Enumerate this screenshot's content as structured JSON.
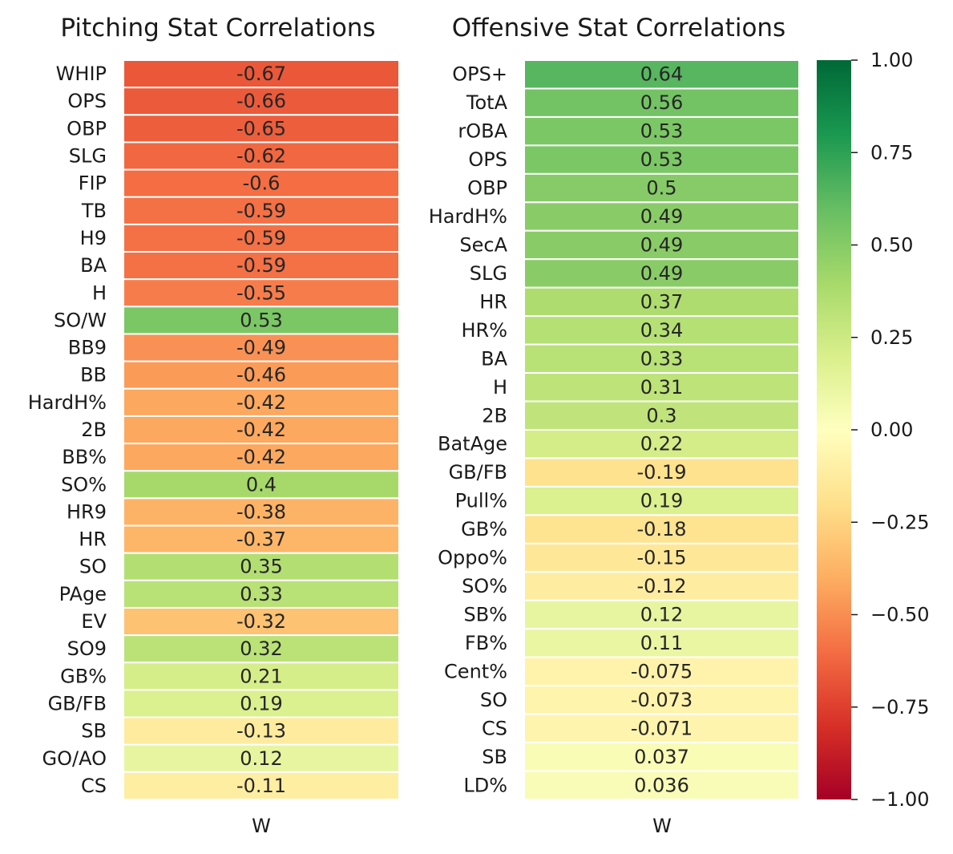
{
  "colormap": "RdYlGn",
  "colormap_stops": [
    "#a50026",
    "#d73027",
    "#f46d43",
    "#fdae61",
    "#fee08b",
    "#ffffbf",
    "#d9ef8b",
    "#a6d96a",
    "#66bd63",
    "#1a9850",
    "#006837"
  ],
  "chart_data": [
    {
      "type": "heatmap",
      "title": "Pitching Stat Correlations",
      "xlabel": "W",
      "rows": [
        "WHIP",
        "OPS",
        "OBP",
        "SLG",
        "FIP",
        "TB",
        "H9",
        "BA",
        "H",
        "SO/W",
        "BB9",
        "BB",
        "HardH%",
        "2B",
        "BB%",
        "SO%",
        "HR9",
        "HR",
        "SO",
        "PAge",
        "EV",
        "SO9",
        "GB%",
        "GB/FB",
        "SB",
        "GO/AO",
        "CS"
      ],
      "values": [
        -0.67,
        -0.66,
        -0.65,
        -0.62,
        -0.6,
        -0.59,
        -0.59,
        -0.59,
        -0.55,
        0.53,
        -0.49,
        -0.46,
        -0.42,
        -0.42,
        -0.42,
        0.4,
        -0.38,
        -0.37,
        0.35,
        0.33,
        -0.32,
        0.32,
        0.21,
        0.19,
        -0.13,
        0.12,
        -0.11
      ],
      "labels": [
        "-0.67",
        "-0.66",
        "-0.65",
        "-0.62",
        "-0.6",
        "-0.59",
        "-0.59",
        "-0.59",
        "-0.55",
        "0.53",
        "-0.49",
        "-0.46",
        "-0.42",
        "-0.42",
        "-0.42",
        "0.4",
        "-0.38",
        "-0.37",
        "0.35",
        "0.33",
        "-0.32",
        "0.32",
        "0.21",
        "0.19",
        "-0.13",
        "0.12",
        "-0.11"
      ]
    },
    {
      "type": "heatmap",
      "title": "Offensive Stat Correlations",
      "xlabel": "W",
      "rows": [
        "OPS+",
        "TotA",
        "rOBA",
        "OPS",
        "OBP",
        "HardH%",
        "SecA",
        "SLG",
        "HR",
        "HR%",
        "BA",
        "H",
        "2B",
        "BatAge",
        "GB/FB",
        "Pull%",
        "GB%",
        "Oppo%",
        "SO%",
        "SB%",
        "FB%",
        "Cent%",
        "SO",
        "CS",
        "SB",
        "LD%"
      ],
      "values": [
        0.64,
        0.56,
        0.53,
        0.53,
        0.5,
        0.49,
        0.49,
        0.49,
        0.37,
        0.34,
        0.33,
        0.31,
        0.3,
        0.22,
        -0.19,
        0.19,
        -0.18,
        -0.15,
        -0.12,
        0.12,
        0.11,
        -0.075,
        -0.073,
        -0.071,
        0.037,
        0.036
      ],
      "labels": [
        "0.64",
        "0.56",
        "0.53",
        "0.53",
        "0.5",
        "0.49",
        "0.49",
        "0.49",
        "0.37",
        "0.34",
        "0.33",
        "0.31",
        "0.3",
        "0.22",
        "-0.19",
        "0.19",
        "-0.18",
        "-0.15",
        "-0.12",
        "0.12",
        "0.11",
        "-0.075",
        "-0.073",
        "-0.071",
        "0.037",
        "0.036"
      ]
    }
  ],
  "colorbar": {
    "range": [
      -1.0,
      1.0
    ],
    "ticks": [
      1.0,
      0.75,
      0.5,
      0.25,
      0.0,
      -0.25,
      -0.5,
      -0.75,
      -1.0
    ],
    "tick_labels": [
      "1.00",
      "0.75",
      "0.50",
      "0.25",
      "0.00",
      "−0.25",
      "−0.50",
      "−0.75",
      "−1.00"
    ]
  }
}
